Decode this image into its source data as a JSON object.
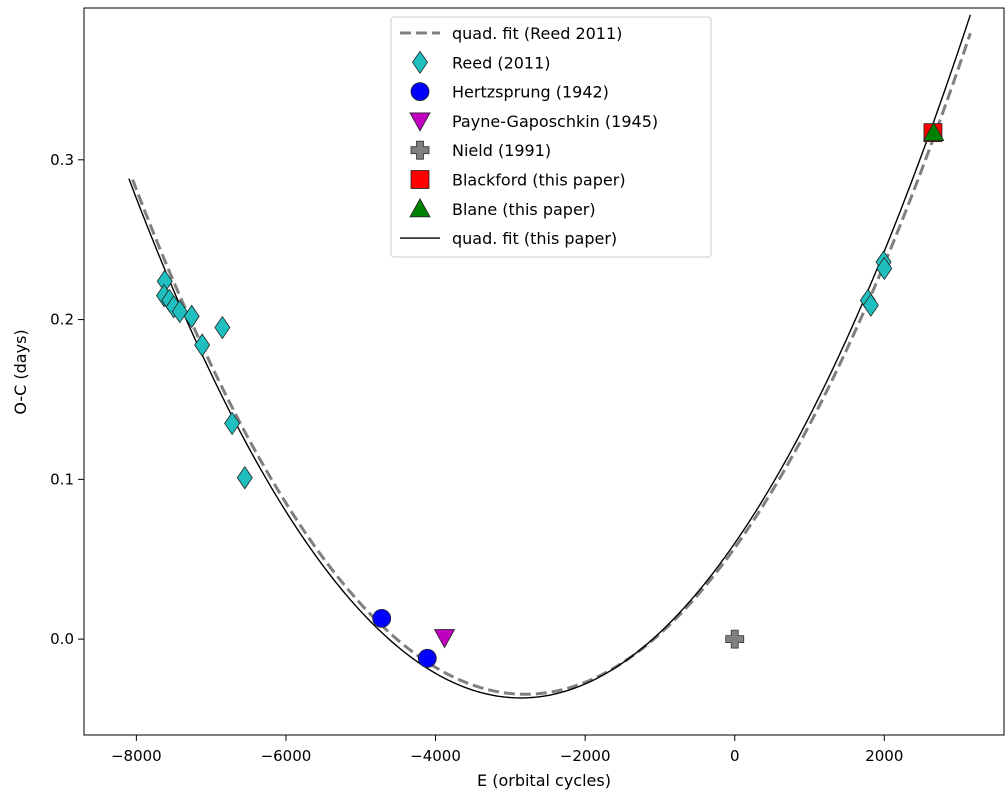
{
  "chart_data": {
    "type": "scatter",
    "xlabel": "E (orbital cycles)",
    "ylabel": "O-C (days)",
    "xlim": [
      -8700,
      3600
    ],
    "ylim": [
      -0.06,
      0.395
    ],
    "x_ticks": [
      -8000,
      -6000,
      -4000,
      -2000,
      0,
      2000
    ],
    "x_tick_labels": [
      "−8000",
      "−6000",
      "−4000",
      "−2000",
      "0",
      "2000"
    ],
    "y_ticks": [
      0.0,
      0.1,
      0.2,
      0.3
    ],
    "y_tick_labels": [
      "0.0",
      "0.1",
      "0.2",
      "0.3"
    ],
    "grid": false,
    "legend_position": "top-center",
    "legend": [
      {
        "label": "quad. fit (Reed 2011)",
        "marker": "dashed-line",
        "color": "#808080"
      },
      {
        "label": "Reed (2011)",
        "marker": "diamond",
        "color": "#1fbfbf"
      },
      {
        "label": "Hertzsprung (1942)",
        "marker": "circle",
        "color": "#0000ff"
      },
      {
        "label": "Payne-Gaposchkin (1945)",
        "marker": "triangle-down",
        "color": "#bf00bf"
      },
      {
        "label": "Nield (1991)",
        "marker": "plus",
        "color": "#808080"
      },
      {
        "label": "Blackford (this paper)",
        "marker": "square",
        "color": "#ff0000"
      },
      {
        "label": "Blane (this paper)",
        "marker": "triangle-up",
        "color": "#008000"
      },
      {
        "label": "quad. fit (this paper)",
        "marker": "solid-line",
        "color": "#000000"
      }
    ],
    "fits": [
      {
        "name": "quad. fit (Reed 2011)",
        "style": "dashed",
        "color": "#808080",
        "x_range": [
          -8050,
          3150
        ],
        "vertex_x": -2800,
        "vertex_y": -0.0345,
        "curvature": 1.1685e-08
      },
      {
        "name": "quad. fit (this paper)",
        "style": "solid",
        "color": "#000000",
        "x_range": [
          -8100,
          3150
        ],
        "vertex_x": -2860,
        "vertex_y": -0.0368,
        "curvature": 1.1836e-08
      }
    ],
    "series": [
      {
        "name": "Reed (2011)",
        "marker": "diamond",
        "color": "#1fbfbf",
        "points": [
          {
            "x": -7620,
            "y": 0.224
          },
          {
            "x": -7630,
            "y": 0.215
          },
          {
            "x": -7560,
            "y": 0.212
          },
          {
            "x": -7500,
            "y": 0.208
          },
          {
            "x": -7420,
            "y": 0.205
          },
          {
            "x": -7260,
            "y": 0.202
          },
          {
            "x": -7120,
            "y": 0.184
          },
          {
            "x": -6850,
            "y": 0.195
          },
          {
            "x": -6720,
            "y": 0.135
          },
          {
            "x": -6550,
            "y": 0.101
          },
          {
            "x": 1780,
            "y": 0.212
          },
          {
            "x": 1820,
            "y": 0.209
          },
          {
            "x": 1990,
            "y": 0.236
          },
          {
            "x": 2000,
            "y": 0.232
          }
        ]
      },
      {
        "name": "Hertzsprung (1942)",
        "marker": "circle",
        "color": "#0000ff",
        "points": [
          {
            "x": -4720,
            "y": 0.013
          },
          {
            "x": -4110,
            "y": -0.012
          }
        ]
      },
      {
        "name": "Payne-Gaposchkin (1945)",
        "marker": "triangle-down",
        "color": "#bf00bf",
        "points": [
          {
            "x": -3880,
            "y": 0.001
          }
        ]
      },
      {
        "name": "Nield (1991)",
        "marker": "plus",
        "color": "#808080",
        "points": [
          {
            "x": 0,
            "y": 0.0
          }
        ]
      },
      {
        "name": "Blackford (this paper)",
        "marker": "square",
        "color": "#ff0000",
        "points": [
          {
            "x": 2650,
            "y": 0.317
          }
        ]
      },
      {
        "name": "Blane (this paper)",
        "marker": "triangle-up",
        "color": "#008000",
        "points": [
          {
            "x": 2660,
            "y": 0.317
          }
        ]
      }
    ]
  }
}
